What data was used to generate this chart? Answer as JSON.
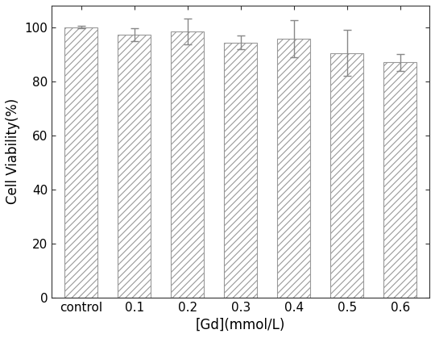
{
  "categories": [
    "control",
    "0.1",
    "0.2",
    "0.3",
    "0.4",
    "0.5",
    "0.6"
  ],
  "values": [
    100.0,
    97.2,
    98.5,
    94.3,
    95.8,
    90.5,
    87.0
  ],
  "errors": [
    0.4,
    2.4,
    4.8,
    2.5,
    6.8,
    8.5,
    3.2
  ],
  "bar_color": "#ffffff",
  "hatch_color": "#aaaaaa",
  "error_color": "#888888",
  "xlabel": "[Gd](mmol/L)",
  "ylabel": "Cell Viability(%)",
  "ylim": [
    0,
    108
  ],
  "yticks": [
    0,
    20,
    40,
    60,
    80,
    100
  ],
  "bar_width": 0.62,
  "hatch": "////",
  "edge_color": "#999999",
  "background_color": "#ffffff",
  "label_fontsize": 12,
  "tick_fontsize": 11,
  "spine_color": "#333333"
}
